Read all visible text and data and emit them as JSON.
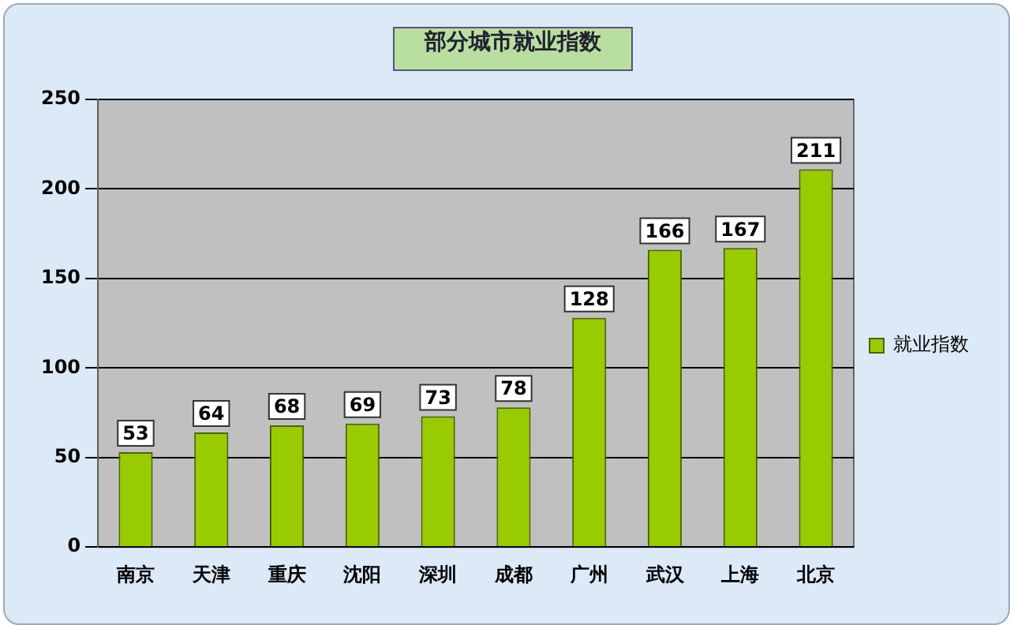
{
  "chart_data": {
    "type": "bar",
    "title": "部分城市就业指数",
    "categories": [
      "南京",
      "天津",
      "重庆",
      "沈阳",
      "深圳",
      "成都",
      "广州",
      "武汉",
      "上海",
      "北京"
    ],
    "series": [
      {
        "name": "就业指数",
        "color": "#99cc00",
        "values": [
          53,
          64,
          68,
          69,
          73,
          78,
          128,
          166,
          167,
          211
        ]
      }
    ],
    "ylim": [
      0,
      250
    ],
    "yticks": [
      0,
      50,
      100,
      150,
      200,
      250
    ],
    "grid": "y",
    "legend": "right",
    "data_labels": true
  }
}
